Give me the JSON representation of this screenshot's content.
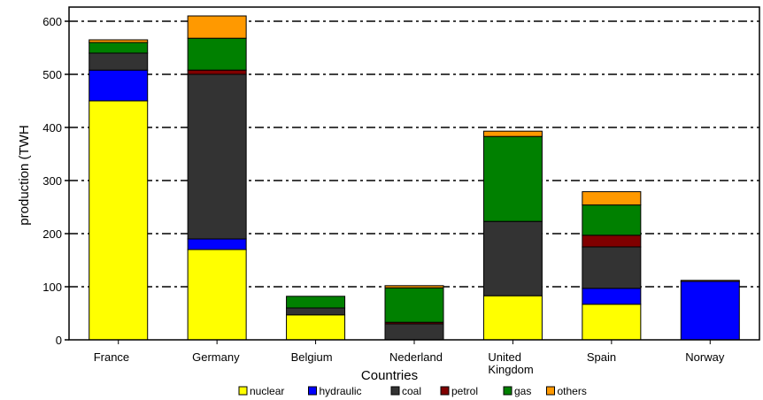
{
  "chart_data": {
    "type": "bar",
    "stacked": true,
    "title": "",
    "xlabel": "Countries",
    "ylabel": "production (TWH",
    "ylim": [
      0,
      600
    ],
    "yticks": [
      0,
      100,
      200,
      300,
      400,
      500,
      600
    ],
    "grid": "horizontal dashed",
    "legend_position": "bottom",
    "categories": [
      [
        "France"
      ],
      [
        "Germany"
      ],
      [
        "Belgium"
      ],
      [
        "Nederland"
      ],
      [
        "United",
        "Kingdom"
      ],
      [
        "Spain"
      ],
      [
        "Norway"
      ]
    ],
    "series": [
      {
        "name": "nuclear",
        "color": "#ffff00",
        "values": [
          450,
          170,
          47,
          0,
          83,
          67,
          0
        ]
      },
      {
        "name": "hydraulic",
        "color": "#0000ff",
        "values": [
          58,
          20,
          0,
          0,
          0,
          30,
          110
        ]
      },
      {
        "name": "coal",
        "color": "#333333",
        "values": [
          32,
          310,
          13,
          30,
          140,
          78,
          0
        ]
      },
      {
        "name": "petrol",
        "color": "#800000",
        "values": [
          0,
          8,
          0,
          3,
          0,
          22,
          0
        ]
      },
      {
        "name": "gas",
        "color": "#008000",
        "values": [
          20,
          60,
          22,
          65,
          160,
          57,
          0
        ]
      },
      {
        "name": "others",
        "color": "#ff9900",
        "values": [
          5,
          42,
          0,
          4,
          10,
          25,
          2
        ]
      }
    ]
  }
}
